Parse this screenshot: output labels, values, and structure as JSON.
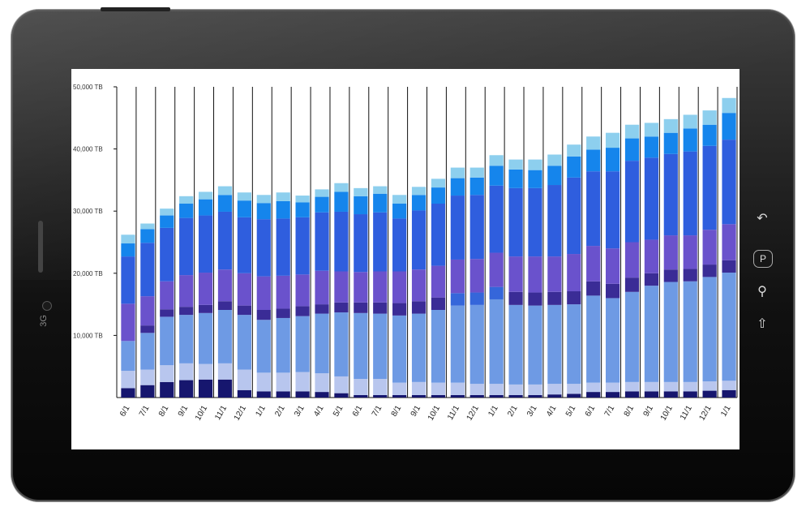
{
  "device": {
    "side_label": "3G",
    "home_button_label": "P",
    "hardware_icons": [
      "back-icon",
      "home-icon",
      "search-icon",
      "menu-icon"
    ]
  },
  "chart_data": {
    "type": "bar",
    "stacked": true,
    "title": "",
    "xlabel": "",
    "ylabel": "",
    "ylim": [
      0,
      50000
    ],
    "yticks": [
      10000,
      20000,
      30000,
      40000,
      50000
    ],
    "ytick_labels": [
      "10,000 TB",
      "20,000 TB",
      "30,000 TB",
      "40,000 TB",
      "50,000 TB"
    ],
    "grid": {
      "vertical": true,
      "horizontal": false
    },
    "legend": "none",
    "categories": [
      "6/1",
      "7/1",
      "8/1",
      "9/1",
      "10/1",
      "11/1",
      "12/1",
      "1/1",
      "2/1",
      "3/1",
      "4/1",
      "5/1",
      "6/1",
      "7/1",
      "8/1",
      "9/1",
      "10/1",
      "11/1",
      "12/1",
      "1/1",
      "2/1",
      "3/1",
      "4/1",
      "5/1",
      "6/1",
      "7/1",
      "8/1",
      "9/1",
      "10/1",
      "11/1",
      "12/1",
      "1/1"
    ],
    "series": [
      {
        "color": "#16166e",
        "values": [
          1500,
          2000,
          2500,
          2800,
          2900,
          2900,
          1200,
          1000,
          1000,
          1000,
          900,
          700,
          400,
          400,
          400,
          400,
          400,
          400,
          400,
          400,
          400,
          400,
          500,
          600,
          900,
          900,
          1000,
          1000,
          1000,
          1000,
          1100,
          1200
        ]
      },
      {
        "color": "#b8c6ee",
        "values": [
          2800,
          2500,
          2700,
          2700,
          2500,
          2600,
          3300,
          3000,
          3000,
          3100,
          3000,
          2700,
          2600,
          2600,
          2000,
          2100,
          2000,
          2000,
          1800,
          1800,
          1700,
          1700,
          1700,
          1600,
          1500,
          1500,
          1500,
          1500,
          1500,
          1500,
          1500,
          1500
        ]
      },
      {
        "color": "#6e9ae4",
        "values": [
          4800,
          5900,
          7800,
          7800,
          8200,
          8600,
          8800,
          8500,
          8800,
          9000,
          9600,
          10300,
          10600,
          10500,
          10800,
          11000,
          11700,
          12400,
          12700,
          13600,
          12800,
          12700,
          12700,
          12800,
          14000,
          13600,
          14500,
          15500,
          16100,
          16200,
          16800,
          17400
        ]
      },
      {
        "color": "#3566da",
        "values": [
          0,
          0,
          0,
          0,
          0,
          0,
          0,
          0,
          0,
          0,
          0,
          0,
          0,
          0,
          0,
          0,
          0,
          2000,
          2000,
          2000,
          0,
          0,
          0,
          0,
          0,
          0,
          0,
          0,
          0,
          0,
          0,
          0
        ]
      },
      {
        "color": "#3a2c96",
        "values": [
          0,
          1200,
          1200,
          1300,
          1300,
          1400,
          1500,
          1600,
          1500,
          1600,
          1500,
          1600,
          1700,
          1800,
          2000,
          2000,
          2000,
          0,
          0,
          0,
          2100,
          2100,
          2100,
          2100,
          2300,
          2300,
          2300,
          2000,
          2000,
          2000,
          2000,
          2000
        ]
      },
      {
        "color": "#6a52cc",
        "values": [
          6000,
          4700,
          4500,
          5100,
          5200,
          5100,
          5200,
          5400,
          5300,
          5100,
          5400,
          5000,
          4900,
          5000,
          5100,
          5100,
          5100,
          5400,
          5400,
          5500,
          5700,
          5800,
          5700,
          6000,
          5700,
          5700,
          5700,
          5400,
          5500,
          5400,
          5600,
          5800
        ]
      },
      {
        "color": "#2f5ede",
        "values": [
          7600,
          8600,
          8600,
          9200,
          9200,
          9300,
          9000,
          9200,
          9200,
          9200,
          9400,
          9600,
          9300,
          9500,
          8500,
          9500,
          10000,
          10300,
          10300,
          10800,
          11000,
          11000,
          11500,
          12300,
          12000,
          12400,
          13100,
          13200,
          13100,
          13500,
          13500,
          13600
        ]
      },
      {
        "color": "#1585ec",
        "values": [
          2100,
          2200,
          2000,
          2300,
          2600,
          2700,
          2700,
          2600,
          2800,
          2400,
          2500,
          3200,
          2900,
          3000,
          2400,
          2500,
          2600,
          2800,
          2800,
          3200,
          3000,
          2900,
          3100,
          3400,
          3500,
          3800,
          3600,
          3400,
          3400,
          3700,
          3400,
          4300
        ]
      },
      {
        "color": "#8dcfee",
        "values": [
          1400,
          900,
          1100,
          1200,
          1200,
          1400,
          1300,
          1300,
          1400,
          1100,
          1200,
          1400,
          1300,
          1200,
          1400,
          1300,
          1400,
          1700,
          1600,
          1700,
          1600,
          1700,
          1800,
          1900,
          2100,
          2400,
          2200,
          2200,
          2200,
          2200,
          2300,
          2400
        ]
      }
    ]
  }
}
